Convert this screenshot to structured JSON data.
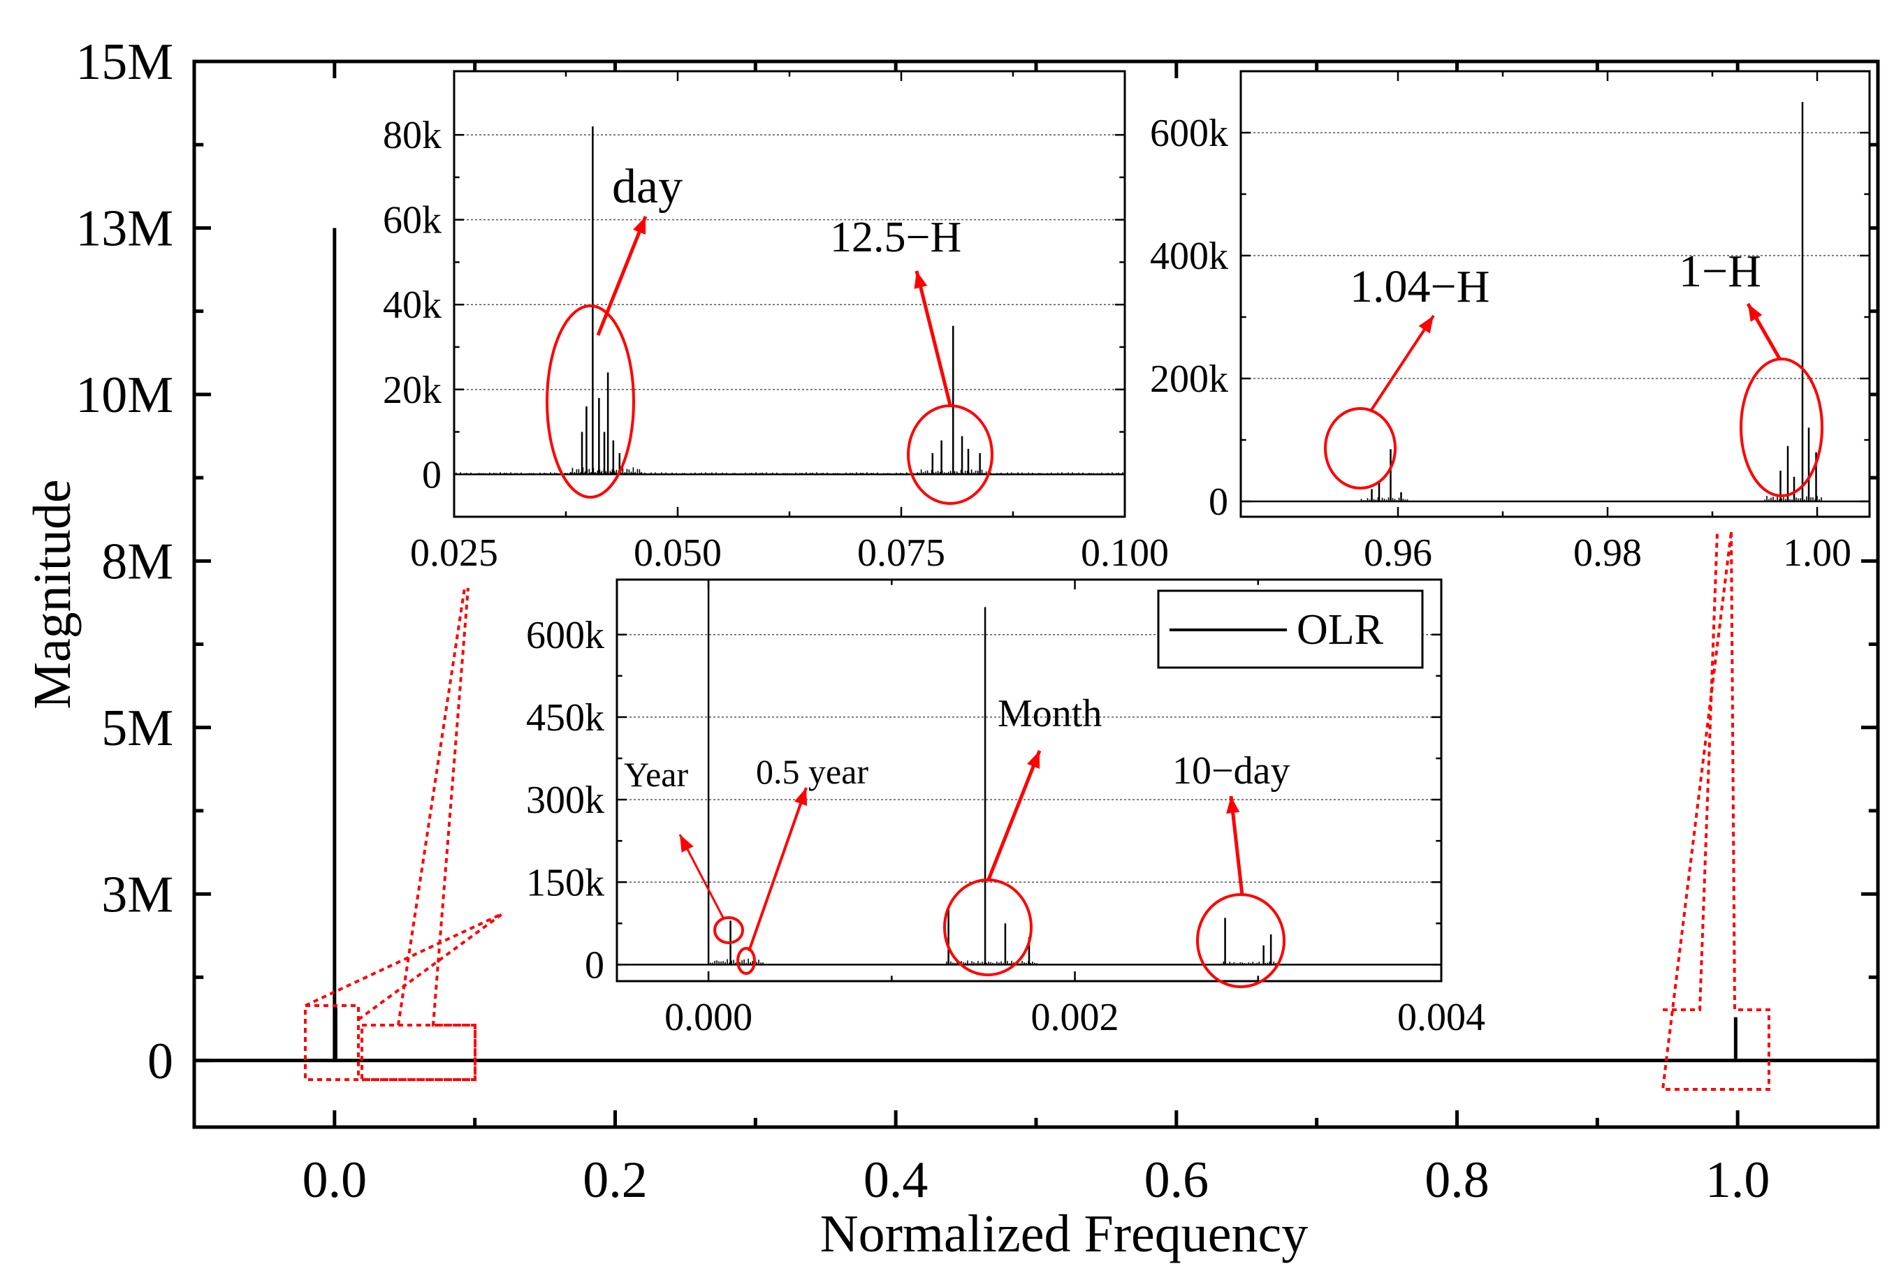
{
  "colors": {
    "axis": "#000000",
    "signal": "#000000",
    "annotation": "#ff0000",
    "grid": "#555555"
  },
  "chart_data": [
    {
      "id": "main",
      "type": "line",
      "title": "",
      "xlabel": "Normalized Frequency",
      "ylabel": "Magnitude",
      "xlim": [
        -0.1,
        1.1
      ],
      "ylim": [
        -1000000,
        15000000
      ],
      "x_ticks": [
        0.0,
        0.2,
        0.4,
        0.6,
        0.8,
        1.0
      ],
      "x_tick_labels": [
        "0.0",
        "0.2",
        "0.4",
        "0.6",
        "0.8",
        "1.0"
      ],
      "y_ticks": [
        0,
        2500000,
        5000000,
        7500000,
        10000000,
        12500000,
        15000000
      ],
      "y_tick_labels": [
        "0",
        "3M",
        "5M",
        "8M",
        "10M",
        "13M",
        "15M"
      ],
      "grid": false,
      "series": [
        {
          "name": "OLR",
          "peaks": [
            {
              "x": 0.0,
              "y": 12500000
            },
            {
              "x": 0.0008,
              "y": 800000
            },
            {
              "x": 0.9986,
              "y": 650000
            }
          ]
        }
      ]
    },
    {
      "id": "inset-low",
      "type": "line",
      "xlim": [
        -0.0005,
        0.004
      ],
      "ylim": [
        -30000,
        700000
      ],
      "x_ticks": [
        0.0,
        0.002,
        0.004
      ],
      "x_tick_labels": [
        "0.000",
        "0.002",
        "0.004"
      ],
      "y_ticks": [
        0,
        150000,
        300000,
        450000,
        600000
      ],
      "y_tick_labels": [
        "0",
        "150k",
        "300k",
        "450k",
        "600k"
      ],
      "grid": true,
      "legend": {
        "position": "top-right",
        "entries": [
          "OLR"
        ]
      },
      "series": [
        {
          "name": "OLR",
          "peaks": [
            {
              "x": 0.0,
              "y": 700000
            },
            {
              "x": 0.00012,
              "y": 80000
            },
            {
              "x": 0.00025,
              "y": 18000
            },
            {
              "x": 0.00131,
              "y": 100000
            },
            {
              "x": 0.00151,
              "y": 650000
            },
            {
              "x": 0.00162,
              "y": 75000
            },
            {
              "x": 0.00175,
              "y": 50000
            },
            {
              "x": 0.00282,
              "y": 85000
            },
            {
              "x": 0.00303,
              "y": 35000
            },
            {
              "x": 0.00307,
              "y": 55000
            }
          ]
        }
      ],
      "annotations": [
        "Year",
        "0.5 year",
        "Month",
        "10−day"
      ]
    },
    {
      "id": "inset-mid",
      "type": "line",
      "xlim": [
        0.025,
        0.1
      ],
      "ylim": [
        -10000,
        95000
      ],
      "x_ticks": [
        0.025,
        0.05,
        0.075,
        0.1
      ],
      "x_tick_labels": [
        "0.025",
        "0.050",
        "0.075",
        "0.100"
      ],
      "y_ticks": [
        0,
        20000,
        40000,
        60000,
        80000
      ],
      "y_tick_labels": [
        "0",
        "20k",
        "40k",
        "60k",
        "80k"
      ],
      "grid": true,
      "series": [
        {
          "name": "OLR",
          "peaks": [
            {
              "x": 0.0393,
              "y": 10000
            },
            {
              "x": 0.0398,
              "y": 16000
            },
            {
              "x": 0.0405,
              "y": 82000
            },
            {
              "x": 0.0412,
              "y": 18000
            },
            {
              "x": 0.0418,
              "y": 10000
            },
            {
              "x": 0.0422,
              "y": 24000
            },
            {
              "x": 0.0428,
              "y": 8000
            },
            {
              "x": 0.0435,
              "y": 5000
            },
            {
              "x": 0.0785,
              "y": 5000
            },
            {
              "x": 0.0795,
              "y": 8000
            },
            {
              "x": 0.0808,
              "y": 35000
            },
            {
              "x": 0.0818,
              "y": 9000
            },
            {
              "x": 0.0825,
              "y": 6000
            },
            {
              "x": 0.0838,
              "y": 5000
            }
          ]
        }
      ],
      "annotations": [
        "day",
        "12.5−H"
      ]
    },
    {
      "id": "inset-high",
      "type": "line",
      "xlim": [
        0.945,
        1.005
      ],
      "ylim": [
        -25000,
        700000
      ],
      "x_ticks": [
        0.96,
        0.98,
        1.0
      ],
      "x_tick_labels": [
        "0.96",
        "0.98",
        "1.00"
      ],
      "y_ticks": [
        0,
        200000,
        400000,
        600000
      ],
      "y_tick_labels": [
        "0",
        "200k",
        "400k",
        "600k"
      ],
      "grid": true,
      "series": [
        {
          "name": "OLR",
          "peaks": [
            {
              "x": 0.9575,
              "y": 20000
            },
            {
              "x": 0.9582,
              "y": 30000
            },
            {
              "x": 0.9593,
              "y": 85000
            },
            {
              "x": 0.9603,
              "y": 15000
            },
            {
              "x": 0.9965,
              "y": 50000
            },
            {
              "x": 0.9972,
              "y": 90000
            },
            {
              "x": 0.9978,
              "y": 40000
            },
            {
              "x": 0.9986,
              "y": 650000
            },
            {
              "x": 0.9992,
              "y": 120000
            },
            {
              "x": 0.9999,
              "y": 80000
            }
          ]
        }
      ],
      "annotations": [
        "1.04−H",
        "1−H"
      ]
    }
  ]
}
